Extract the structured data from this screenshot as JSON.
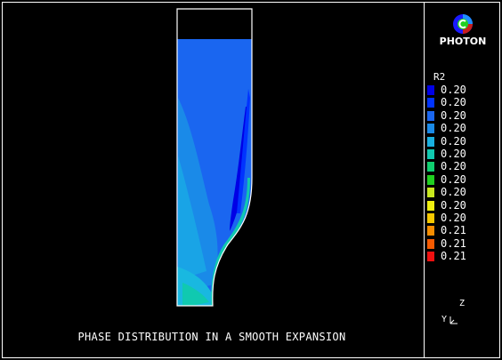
{
  "app": {
    "name": "PHOTON"
  },
  "plot": {
    "caption": "PHASE DISTRIBUTION IN A SMOOTH EXPANSION"
  },
  "legend": {
    "variable": "R2",
    "levels": [
      {
        "value": "0.20",
        "color": "#0000e6"
      },
      {
        "value": "0.20",
        "color": "#0033ff"
      },
      {
        "value": "0.20",
        "color": "#1a66f0"
      },
      {
        "value": "0.20",
        "color": "#1a8ae8"
      },
      {
        "value": "0.20",
        "color": "#19b0e0"
      },
      {
        "value": "0.20",
        "color": "#10c9b0"
      },
      {
        "value": "0.20",
        "color": "#10d070"
      },
      {
        "value": "0.20",
        "color": "#20d020"
      },
      {
        "value": "0.20",
        "color": "#c8e81e"
      },
      {
        "value": "0.20",
        "color": "#f0f010"
      },
      {
        "value": "0.20",
        "color": "#f5c800"
      },
      {
        "value": "0.21",
        "color": "#f58c00"
      },
      {
        "value": "0.21",
        "color": "#f55a00"
      },
      {
        "value": "0.21",
        "color": "#f01010"
      }
    ]
  },
  "axes": {
    "z_label": "Z",
    "y_label": "Y"
  }
}
